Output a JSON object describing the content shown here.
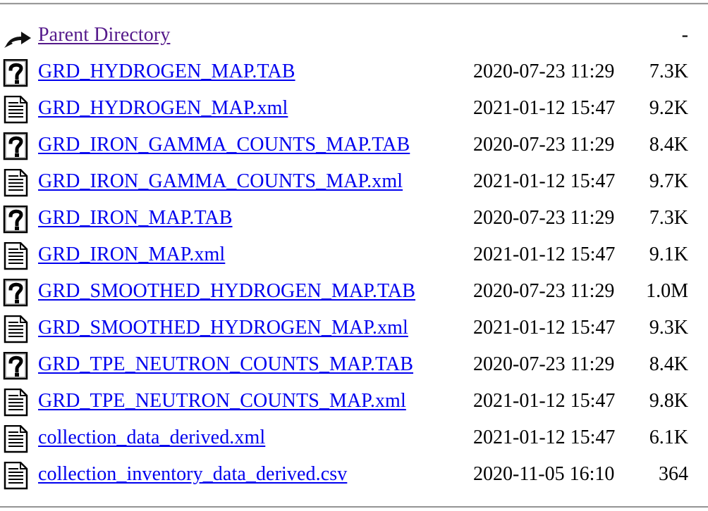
{
  "parent": {
    "label": "Parent Directory",
    "size": "-"
  },
  "files": [
    {
      "name": "GRD_HYDROGEN_MAP.TAB",
      "modified": "2020-07-23 11:29",
      "size": "7.3K",
      "icon": "unknown-file-icon"
    },
    {
      "name": "GRD_HYDROGEN_MAP.xml",
      "modified": "2021-01-12 15:47",
      "size": "9.2K",
      "icon": "text-file-icon"
    },
    {
      "name": "GRD_IRON_GAMMA_COUNTS_MAP.TAB",
      "modified": "2020-07-23 11:29",
      "size": "8.4K",
      "icon": "unknown-file-icon"
    },
    {
      "name": "GRD_IRON_GAMMA_COUNTS_MAP.xml",
      "modified": "2021-01-12 15:47",
      "size": "9.7K",
      "icon": "text-file-icon"
    },
    {
      "name": "GRD_IRON_MAP.TAB",
      "modified": "2020-07-23 11:29",
      "size": "7.3K",
      "icon": "unknown-file-icon"
    },
    {
      "name": "GRD_IRON_MAP.xml",
      "modified": "2021-01-12 15:47",
      "size": "9.1K",
      "icon": "text-file-icon"
    },
    {
      "name": "GRD_SMOOTHED_HYDROGEN_MAP.TAB",
      "modified": "2020-07-23 11:29",
      "size": "1.0M",
      "icon": "unknown-file-icon"
    },
    {
      "name": "GRD_SMOOTHED_HYDROGEN_MAP.xml",
      "modified": "2021-01-12 15:47",
      "size": "9.3K",
      "icon": "text-file-icon"
    },
    {
      "name": "GRD_TPE_NEUTRON_COUNTS_MAP.TAB",
      "modified": "2020-07-23 11:29",
      "size": "8.4K",
      "icon": "unknown-file-icon"
    },
    {
      "name": "GRD_TPE_NEUTRON_COUNTS_MAP.xml",
      "modified": "2021-01-12 15:47",
      "size": "9.8K",
      "icon": "text-file-icon"
    },
    {
      "name": "collection_data_derived.xml",
      "modified": "2021-01-12 15:47",
      "size": "6.1K",
      "icon": "text-file-icon"
    },
    {
      "name": "collection_inventory_data_derived.csv",
      "modified": "2020-11-05 16:10",
      "size": "364",
      "icon": "text-file-icon"
    }
  ],
  "colors": {
    "link": "#0000ee",
    "visited_link": "#551a8b",
    "rule": "#9a9a9a"
  }
}
